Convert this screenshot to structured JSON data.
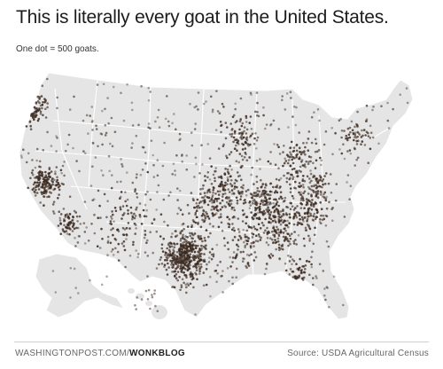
{
  "header": {
    "title": "This is literally every goat in the United States.",
    "subtitle": "One dot = 500 goats."
  },
  "footer": {
    "site": "WASHINGTONPOST.COM/",
    "section": "WONKBLOG",
    "source": "Source: USDA Agricultural Census"
  },
  "map": {
    "land_color": "#e5e5e5",
    "border_color": "#ffffff",
    "dot_color": "#3b2a20",
    "clusters": [
      {
        "name": "texas-hill-country",
        "lon": -99.3,
        "lat": 30.6,
        "spread": 1.7,
        "count": 420
      },
      {
        "name": "california-central",
        "lon": -121.2,
        "lat": 38.3,
        "spread": 1.1,
        "count": 150
      },
      {
        "name": "southern-california",
        "lon": -117.5,
        "lat": 34.1,
        "spread": 0.8,
        "count": 60
      },
      {
        "name": "tennessee-kentucky",
        "lon": -86.8,
        "lat": 35.9,
        "spread": 1.8,
        "count": 190
      },
      {
        "name": "missouri-ozarks",
        "lon": -92.9,
        "lat": 37.4,
        "spread": 1.6,
        "count": 120
      },
      {
        "name": "oklahoma",
        "lon": -96.4,
        "lat": 35.3,
        "spread": 1.5,
        "count": 90
      },
      {
        "name": "carolinas",
        "lon": -80.1,
        "lat": 35.3,
        "spread": 1.5,
        "count": 110
      },
      {
        "name": "georgia-alabama",
        "lon": -84.9,
        "lat": 33.0,
        "spread": 1.6,
        "count": 110
      },
      {
        "name": "ohio-pennsylvania",
        "lon": -81.8,
        "lat": 40.4,
        "spread": 1.7,
        "count": 110
      },
      {
        "name": "wisconsin-iowa",
        "lon": -90.8,
        "lat": 43.0,
        "spread": 1.6,
        "count": 90
      },
      {
        "name": "new-mexico-arizona",
        "lon": -108.5,
        "lat": 34.6,
        "spread": 2.5,
        "count": 90
      },
      {
        "name": "pacific-northwest",
        "lon": -122.4,
        "lat": 45.8,
        "spread": 1.0,
        "count": 60
      },
      {
        "name": "florida",
        "lon": -82.0,
        "lat": 28.4,
        "spread": 1.3,
        "count": 50
      },
      {
        "name": "new-england",
        "lon": -72.5,
        "lat": 42.9,
        "spread": 1.3,
        "count": 50
      },
      {
        "name": "virginia",
        "lon": -78.4,
        "lat": 37.9,
        "spread": 1.3,
        "count": 60
      },
      {
        "name": "mississippi-louisiana",
        "lon": -90.4,
        "lat": 31.9,
        "spread": 1.6,
        "count": 70
      }
    ],
    "background_dots": 520,
    "hawaii_dots": 14
  }
}
